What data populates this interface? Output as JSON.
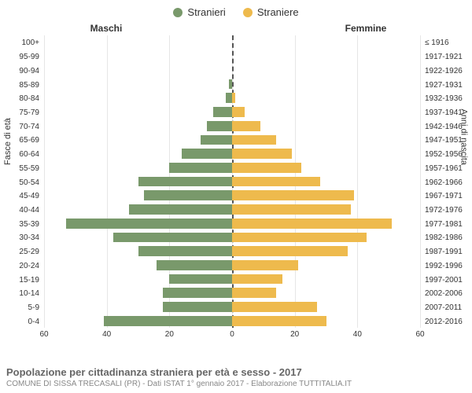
{
  "legend": {
    "male": {
      "label": "Stranieri",
      "color": "#79996b"
    },
    "female": {
      "label": "Straniere",
      "color": "#eeba4d"
    }
  },
  "column_headers": {
    "left": "Maschi",
    "right": "Femmine"
  },
  "axis_titles": {
    "left": "Fasce di età",
    "right": "Anni di nascita"
  },
  "chart": {
    "type": "population-pyramid",
    "xmax": 60,
    "xtick_step": 20,
    "xtick_labels_left": [
      "60",
      "40",
      "20",
      "0"
    ],
    "xtick_labels_right": [
      "0",
      "20",
      "40",
      "60"
    ],
    "background_color": "#ffffff",
    "grid_color": "#e6e6e6",
    "center_line_color": "#555555",
    "bar_height_ratio": 0.72,
    "age_groups": [
      {
        "label": "100+",
        "birth": "≤ 1916",
        "m": 0,
        "f": 0
      },
      {
        "label": "95-99",
        "birth": "1917-1921",
        "m": 0,
        "f": 0
      },
      {
        "label": "90-94",
        "birth": "1922-1926",
        "m": 0,
        "f": 0
      },
      {
        "label": "85-89",
        "birth": "1927-1931",
        "m": 1,
        "f": 0
      },
      {
        "label": "80-84",
        "birth": "1932-1936",
        "m": 2,
        "f": 1
      },
      {
        "label": "75-79",
        "birth": "1937-1941",
        "m": 6,
        "f": 4
      },
      {
        "label": "70-74",
        "birth": "1942-1946",
        "m": 8,
        "f": 9
      },
      {
        "label": "65-69",
        "birth": "1947-1951",
        "m": 10,
        "f": 14
      },
      {
        "label": "60-64",
        "birth": "1952-1956",
        "m": 16,
        "f": 19
      },
      {
        "label": "55-59",
        "birth": "1957-1961",
        "m": 20,
        "f": 22
      },
      {
        "label": "50-54",
        "birth": "1962-1966",
        "m": 30,
        "f": 28
      },
      {
        "label": "45-49",
        "birth": "1967-1971",
        "m": 28,
        "f": 39
      },
      {
        "label": "40-44",
        "birth": "1972-1976",
        "m": 33,
        "f": 38
      },
      {
        "label": "35-39",
        "birth": "1977-1981",
        "m": 53,
        "f": 51
      },
      {
        "label": "30-34",
        "birth": "1982-1986",
        "m": 38,
        "f": 43
      },
      {
        "label": "25-29",
        "birth": "1987-1991",
        "m": 30,
        "f": 37
      },
      {
        "label": "20-24",
        "birth": "1992-1996",
        "m": 24,
        "f": 21
      },
      {
        "label": "15-19",
        "birth": "1997-2001",
        "m": 20,
        "f": 16
      },
      {
        "label": "10-14",
        "birth": "2002-2006",
        "m": 22,
        "f": 14
      },
      {
        "label": "5-9",
        "birth": "2007-2011",
        "m": 22,
        "f": 27
      },
      {
        "label": "0-4",
        "birth": "2012-2016",
        "m": 41,
        "f": 30
      }
    ]
  },
  "footer": {
    "title": "Popolazione per cittadinanza straniera per età e sesso - 2017",
    "subtitle": "COMUNE DI SISSA TRECASALI (PR) - Dati ISTAT 1° gennaio 2017 - Elaborazione TUTTITALIA.IT"
  }
}
